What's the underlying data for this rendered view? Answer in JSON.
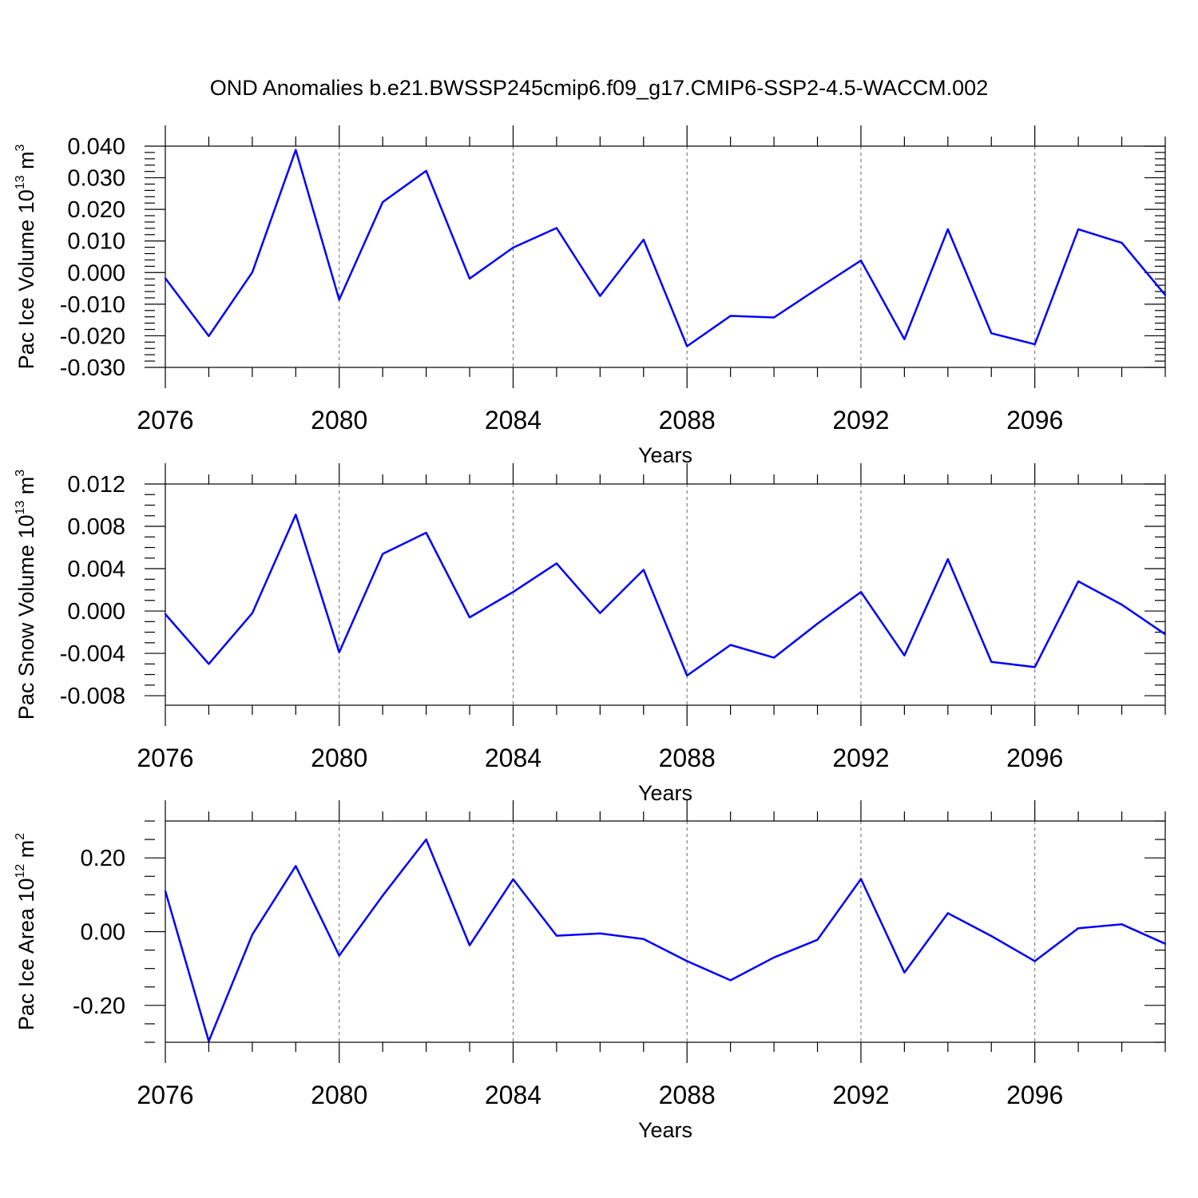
{
  "title": "OND Anomalies b.e21.BWSSP245cmip6.f09_g17.CMIP6-SSP2-4.5-WACCM.002",
  "line_color": "#0000ff",
  "chart_data": [
    {
      "type": "line",
      "id": "ice-volume",
      "ylabel_main": "Pac Ice Volume 10",
      "ylabel_exp1": "13",
      "ylabel_unit": " m",
      "ylabel_exp2": "3",
      "xlabel": "Years",
      "xlim": [
        2076,
        2099
      ],
      "ylim": [
        -0.03,
        0.04
      ],
      "yticks": [
        0.04,
        0.03,
        0.02,
        0.01,
        0.0,
        -0.01,
        -0.02,
        -0.03
      ],
      "ytick_labels": [
        "0.040",
        "0.030",
        "0.020",
        "0.010",
        "0.000",
        "-0.010",
        "-0.020",
        "-0.030"
      ],
      "yminor_step": 0.002,
      "xticks": [
        2076,
        2080,
        2084,
        2088,
        2092,
        2096
      ],
      "xtick_labels": [
        "2076",
        "2080",
        "2084",
        "2088",
        "2092",
        "2096"
      ],
      "grid_years": [
        2080,
        2084,
        2088,
        2092,
        2096
      ],
      "x": [
        2076,
        2077,
        2078,
        2079,
        2080,
        2081,
        2082,
        2083,
        2084,
        2085,
        2086,
        2087,
        2088,
        2089,
        2090,
        2091,
        2092,
        2093,
        2094,
        2095,
        2096,
        2097,
        2098,
        2099
      ],
      "values": [
        -0.0018,
        -0.0201,
        0.0001,
        0.0388,
        -0.0086,
        0.0223,
        0.0322,
        -0.0019,
        0.0079,
        0.0141,
        -0.0074,
        0.0104,
        -0.0233,
        -0.0137,
        -0.0142,
        -0.0051,
        0.0038,
        -0.0211,
        0.0137,
        -0.0192,
        -0.0227,
        0.0137,
        0.0094,
        -0.0071
      ]
    },
    {
      "type": "line",
      "id": "snow-volume",
      "ylabel_main": "Pac Snow Volume 10",
      "ylabel_exp1": "13",
      "ylabel_unit": " m",
      "ylabel_exp2": "3",
      "xlabel": "Years",
      "xlim": [
        2076,
        2099
      ],
      "ylim": [
        -0.0089,
        0.012
      ],
      "yticks": [
        0.012,
        0.008,
        0.004,
        0.0,
        -0.004,
        -0.008
      ],
      "ytick_labels": [
        "0.012",
        "0.008",
        "0.004",
        "0.000",
        "-0.004",
        "-0.008"
      ],
      "yminor_step": 0.001,
      "xticks": [
        2076,
        2080,
        2084,
        2088,
        2092,
        2096
      ],
      "xtick_labels": [
        "2076",
        "2080",
        "2084",
        "2088",
        "2092",
        "2096"
      ],
      "grid_years": [
        2080,
        2084,
        2088,
        2092,
        2096
      ],
      "x": [
        2076,
        2077,
        2078,
        2079,
        2080,
        2081,
        2082,
        2083,
        2084,
        2085,
        2086,
        2087,
        2088,
        2089,
        2090,
        2091,
        2092,
        2093,
        2094,
        2095,
        2096,
        2097,
        2098,
        2099
      ],
      "values": [
        -0.0003,
        -0.005,
        -0.0002,
        0.0091,
        -0.0039,
        0.0054,
        0.0074,
        -0.0006,
        0.0018,
        0.0045,
        -0.0002,
        0.0039,
        -0.0061,
        -0.0032,
        -0.0044,
        -0.0012,
        0.0018,
        -0.0042,
        0.0049,
        -0.0048,
        -0.0053,
        0.0028,
        0.0006,
        -0.0022
      ]
    },
    {
      "type": "line",
      "id": "ice-area",
      "ylabel_main": "Pac Ice Area 10",
      "ylabel_exp1": "12",
      "ylabel_unit": " m",
      "ylabel_exp2": "2",
      "xlabel": "Years",
      "xlim": [
        2076,
        2099
      ],
      "ylim": [
        -0.3,
        0.3
      ],
      "yticks": [
        0.2,
        0.0,
        -0.2
      ],
      "ytick_labels": [
        "0.20",
        "0.00",
        "-0.20"
      ],
      "yminor_step": 0.05,
      "xticks": [
        2076,
        2080,
        2084,
        2088,
        2092,
        2096
      ],
      "xtick_labels": [
        "2076",
        "2080",
        "2084",
        "2088",
        "2092",
        "2096"
      ],
      "grid_years": [
        2080,
        2084,
        2088,
        2092,
        2096
      ],
      "x": [
        2076,
        2077,
        2078,
        2079,
        2080,
        2081,
        2082,
        2083,
        2084,
        2085,
        2086,
        2087,
        2088,
        2089,
        2090,
        2091,
        2092,
        2093,
        2094,
        2095,
        2096,
        2097,
        2098,
        2099
      ],
      "values": [
        0.11,
        -0.297,
        -0.008,
        0.178,
        -0.065,
        0.098,
        0.25,
        -0.037,
        0.142,
        -0.011,
        -0.005,
        -0.02,
        -0.08,
        -0.132,
        -0.07,
        -0.022,
        0.143,
        -0.111,
        0.05,
        -0.012,
        -0.08,
        0.009,
        0.02,
        -0.033
      ]
    }
  ]
}
